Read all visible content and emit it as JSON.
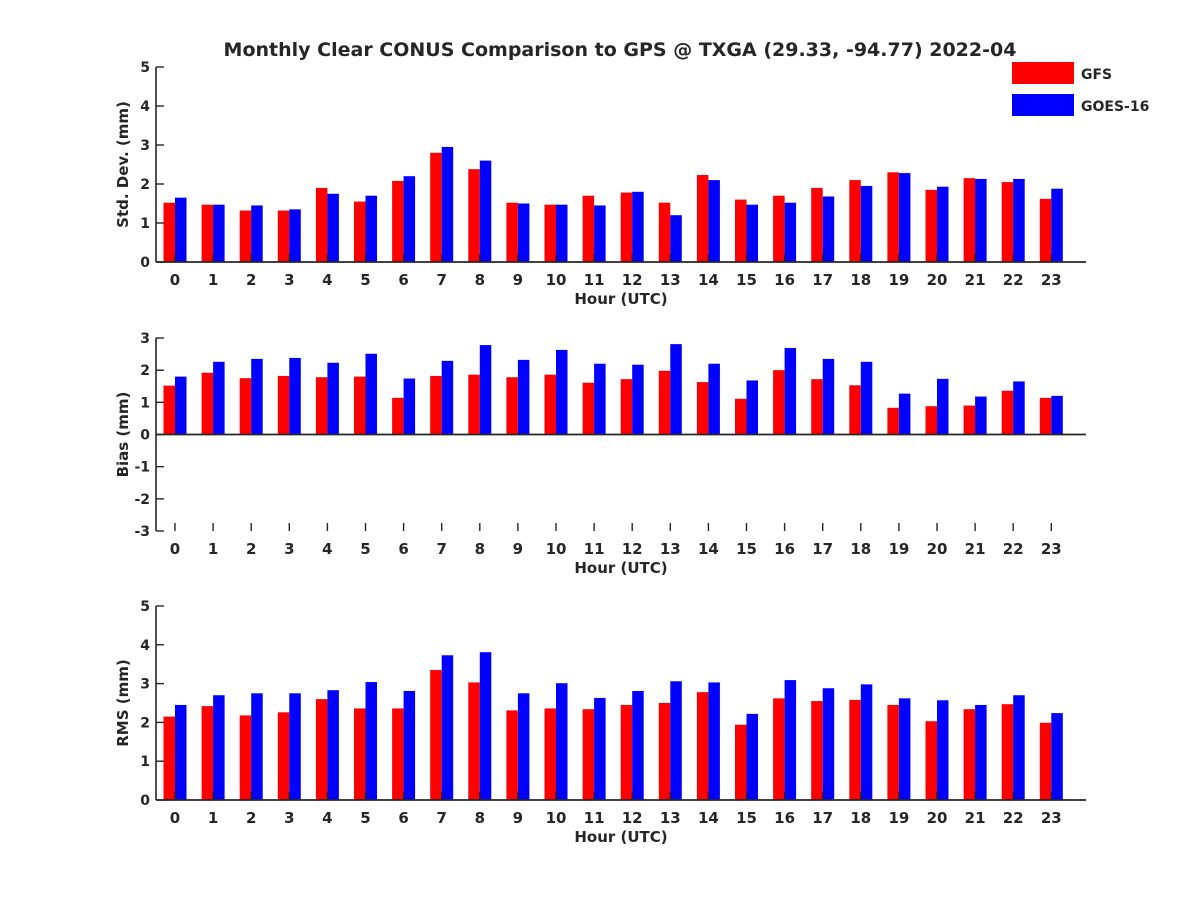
{
  "title": "Monthly Clear CONUS Comparison to GPS @ TXGA (29.33, -94.77) 2022-04",
  "legend": {
    "placement": "top-right",
    "entries": [
      {
        "name": "GFS",
        "color": "#ff0000"
      },
      {
        "name": "GOES-16",
        "color": "#0000ff"
      }
    ]
  },
  "chart_data": [
    {
      "type": "bar",
      "xlabel": "Hour (UTC)",
      "ylabel": "Std. Dev. (mm)",
      "ylim": [
        0,
        5
      ],
      "yticks": [
        "0",
        "1",
        "2",
        "3",
        "4",
        "5"
      ],
      "categories": [
        "0",
        "1",
        "2",
        "3",
        "4",
        "5",
        "6",
        "7",
        "8",
        "9",
        "10",
        "11",
        "12",
        "13",
        "14",
        "15",
        "16",
        "17",
        "18",
        "19",
        "20",
        "21",
        "22",
        "23"
      ],
      "series": [
        {
          "name": "GFS",
          "color": "#ff0000",
          "values": [
            1.52,
            1.47,
            1.32,
            1.32,
            1.9,
            1.55,
            2.08,
            2.8,
            2.38,
            1.52,
            1.47,
            1.7,
            1.78,
            1.52,
            2.23,
            1.6,
            1.7,
            1.9,
            2.1,
            2.3,
            1.85,
            2.15,
            2.05,
            1.62
          ]
        },
        {
          "name": "GOES-16",
          "color": "#0000ff",
          "values": [
            1.65,
            1.47,
            1.45,
            1.35,
            1.75,
            1.7,
            2.2,
            2.95,
            2.6,
            1.5,
            1.47,
            1.45,
            1.8,
            1.2,
            2.1,
            1.47,
            1.52,
            1.68,
            1.95,
            2.28,
            1.93,
            2.13,
            2.13,
            1.88
          ]
        }
      ]
    },
    {
      "type": "bar",
      "xlabel": "Hour (UTC)",
      "ylabel": "Bias (mm)",
      "ylim": [
        -3,
        3
      ],
      "yticks": [
        "-3",
        "-2",
        "-1",
        "0",
        "1",
        "2",
        "3"
      ],
      "categories": [
        "0",
        "1",
        "2",
        "3",
        "4",
        "5",
        "6",
        "7",
        "8",
        "9",
        "10",
        "11",
        "12",
        "13",
        "14",
        "15",
        "16",
        "17",
        "18",
        "19",
        "20",
        "21",
        "22",
        "23"
      ],
      "series": [
        {
          "name": "GFS",
          "color": "#ff0000",
          "values": [
            1.52,
            1.92,
            1.75,
            1.82,
            1.78,
            1.8,
            1.14,
            1.82,
            1.86,
            1.78,
            1.86,
            1.61,
            1.72,
            1.98,
            1.63,
            1.11,
            2.0,
            1.72,
            1.53,
            0.83,
            0.88,
            0.9,
            1.36,
            1.14
          ]
        },
        {
          "name": "GOES-16",
          "color": "#0000ff",
          "values": [
            1.8,
            2.26,
            2.35,
            2.38,
            2.23,
            2.51,
            1.74,
            2.29,
            2.78,
            2.32,
            2.63,
            2.2,
            2.17,
            2.81,
            2.2,
            1.68,
            2.69,
            2.35,
            2.26,
            1.27,
            1.73,
            1.18,
            1.65,
            1.2
          ]
        }
      ]
    },
    {
      "type": "bar",
      "xlabel": "Hour (UTC)",
      "ylabel": "RMS (mm)",
      "ylim": [
        0,
        5
      ],
      "yticks": [
        "0",
        "1",
        "2",
        "3",
        "4",
        "5"
      ],
      "categories": [
        "0",
        "1",
        "2",
        "3",
        "4",
        "5",
        "6",
        "7",
        "8",
        "9",
        "10",
        "11",
        "12",
        "13",
        "14",
        "15",
        "16",
        "17",
        "18",
        "19",
        "20",
        "21",
        "22",
        "23"
      ],
      "series": [
        {
          "name": "GFS",
          "color": "#ff0000",
          "values": [
            2.15,
            2.42,
            2.18,
            2.26,
            2.6,
            2.36,
            2.36,
            3.35,
            3.03,
            2.31,
            2.36,
            2.34,
            2.45,
            2.5,
            2.78,
            1.94,
            2.62,
            2.55,
            2.58,
            2.45,
            2.03,
            2.34,
            2.47,
            1.99
          ]
        },
        {
          "name": "GOES-16",
          "color": "#0000ff",
          "values": [
            2.45,
            2.7,
            2.75,
            2.75,
            2.83,
            3.04,
            2.81,
            3.73,
            3.81,
            2.75,
            3.01,
            2.63,
            2.81,
            3.06,
            3.03,
            2.22,
            3.09,
            2.88,
            2.98,
            2.62,
            2.57,
            2.45,
            2.7,
            2.24
          ]
        }
      ]
    }
  ]
}
